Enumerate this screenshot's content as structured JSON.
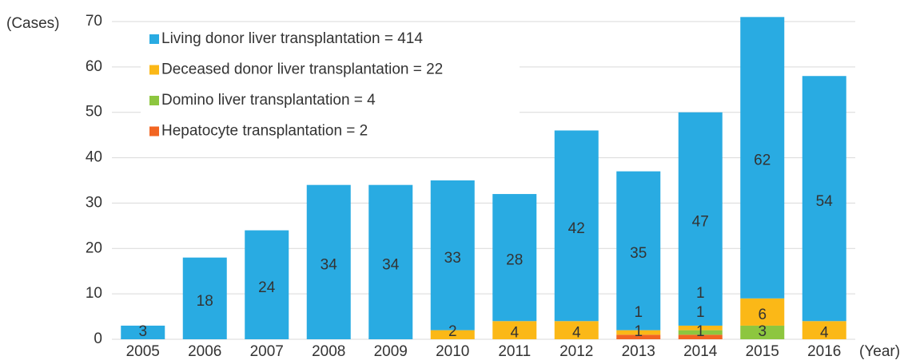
{
  "chart_data": {
    "type": "stacked_bar",
    "y_label": "(Cases)",
    "x_label": "(Year)",
    "categories": [
      "2005",
      "2006",
      "2007",
      "2008",
      "2009",
      "2010",
      "2011",
      "2012",
      "2013",
      "2014",
      "2015",
      "2016"
    ],
    "series": [
      {
        "name": "Living donor liver transplantation = 414",
        "color": "#29abe2",
        "values": [
          3,
          18,
          24,
          34,
          34,
          33,
          28,
          42,
          35,
          47,
          62,
          54
        ]
      },
      {
        "name": "Deceased donor liver transplantation = 22",
        "color": "#fbb817",
        "values": [
          null,
          null,
          null,
          null,
          null,
          2,
          4,
          4,
          1,
          1,
          6,
          4
        ]
      },
      {
        "name": "Domino liver transplantation = 4",
        "color": "#8dc63f",
        "values": [
          null,
          null,
          null,
          null,
          null,
          null,
          null,
          null,
          null,
          1,
          3,
          null
        ]
      },
      {
        "name": "Hepatocyte transplantation = 2",
        "color": "#f26522",
        "values": [
          null,
          null,
          null,
          null,
          null,
          null,
          null,
          null,
          1,
          1,
          null,
          null
        ]
      }
    ],
    "ylim": [
      0,
      70
    ],
    "yticks": [
      0,
      10,
      20,
      30,
      40,
      50,
      60,
      70
    ],
    "grid": true,
    "legend": "upper left"
  }
}
